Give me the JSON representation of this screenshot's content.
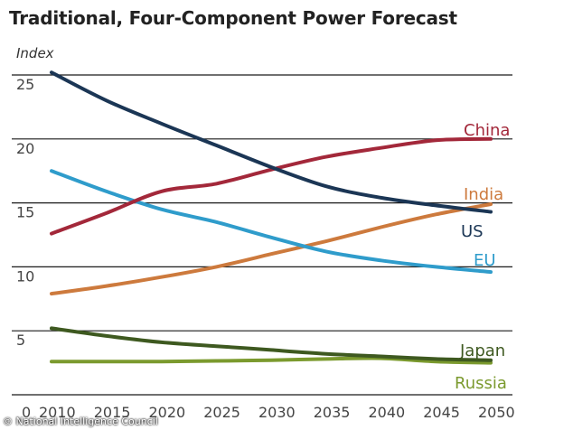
{
  "chart_data": {
    "type": "line",
    "title": "Traditional, Four-Component Power Forecast",
    "ylabel": "Index",
    "xlabel": "",
    "x": [
      2010,
      2015,
      2020,
      2025,
      2030,
      2035,
      2040,
      2045,
      2050
    ],
    "xticks": [
      "0",
      "2010",
      "2015",
      "2020",
      "2025",
      "2030",
      "2035",
      "2040",
      "2045",
      "2050"
    ],
    "yticks": [
      "25",
      "20",
      "15",
      "10",
      "5"
    ],
    "ylim": [
      0,
      25
    ],
    "xlim": [
      2010,
      2050
    ],
    "grid": "horizontal",
    "series": [
      {
        "name": "China",
        "color": "#a3283a",
        "values": [
          12.6,
          14.2,
          15.9,
          16.5,
          17.6,
          18.6,
          19.3,
          19.9,
          20.0
        ]
      },
      {
        "name": "India",
        "color": "#cd7a3d",
        "values": [
          7.9,
          8.5,
          9.2,
          10.0,
          11.0,
          12.0,
          13.1,
          14.1,
          14.9
        ]
      },
      {
        "name": "US",
        "color": "#1b3655",
        "values": [
          25.2,
          23.0,
          21.2,
          19.5,
          17.8,
          16.3,
          15.4,
          14.8,
          14.3
        ]
      },
      {
        "name": "EU",
        "color": "#2f9ccb",
        "values": [
          17.5,
          15.9,
          14.5,
          13.5,
          12.3,
          11.2,
          10.5,
          10.0,
          9.6
        ]
      },
      {
        "name": "Japan",
        "color": "#3e5920",
        "values": [
          5.2,
          4.6,
          4.1,
          3.8,
          3.5,
          3.2,
          3.0,
          2.8,
          2.7
        ]
      },
      {
        "name": "Russia",
        "color": "#7b9a2e",
        "values": [
          2.6,
          2.6,
          2.6,
          2.65,
          2.7,
          2.8,
          2.85,
          2.6,
          2.5
        ]
      }
    ]
  },
  "credit": "© National Intelligence Council"
}
